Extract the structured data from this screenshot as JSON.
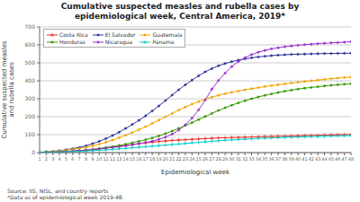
{
  "chart_data": {
    "type": "line",
    "title": "Cumulative suspected measles and rubella cases by\nepidemiological week, Central America, 2019*",
    "x_label": "Epidemiological week",
    "y_label": "Cumulative suspected measles\nand rubella cases",
    "annotations": [
      "Source: IIS, NISL, and country reports",
      "*Data as of epidemiological week 2019-48."
    ],
    "x": [
      1,
      2,
      3,
      4,
      5,
      6,
      7,
      8,
      9,
      10,
      11,
      12,
      13,
      14,
      15,
      16,
      17,
      18,
      19,
      20,
      21,
      22,
      23,
      24,
      25,
      26,
      27,
      28,
      29,
      30,
      31,
      32,
      33,
      34,
      35,
      36,
      37,
      38,
      39,
      40,
      41,
      42,
      43,
      44,
      45,
      46,
      47,
      48
    ],
    "xlim": [
      1,
      48
    ],
    "xticks": [
      1,
      2,
      3,
      4,
      5,
      6,
      7,
      8,
      9,
      10,
      11,
      12,
      13,
      14,
      15,
      16,
      17,
      18,
      19,
      20,
      21,
      22,
      23,
      24,
      25,
      26,
      27,
      28,
      29,
      30,
      31,
      32,
      33,
      34,
      35,
      36,
      37,
      38,
      39,
      40,
      41,
      42,
      43,
      44,
      45,
      46,
      47,
      48
    ],
    "ylim": [
      0,
      700
    ],
    "yticks": [
      0,
      100,
      200,
      300,
      400,
      500,
      600,
      700
    ],
    "grid": "y",
    "legend": "upper left",
    "series": [
      {
        "name": "Costa Rica",
        "color": "#e8251a",
        "marker": "plus",
        "values": [
          2,
          3,
          4,
          5,
          7,
          9,
          11,
          14,
          17,
          21,
          25,
          30,
          35,
          40,
          45,
          50,
          55,
          58,
          62,
          65,
          68,
          70,
          72,
          74,
          76,
          78,
          80,
          82,
          83,
          84,
          85,
          86,
          87,
          88,
          89,
          90,
          91,
          92,
          93,
          94,
          95,
          96,
          97,
          98,
          99,
          100,
          100,
          101
        ]
      },
      {
        "name": "El Salvador",
        "color": "#333399",
        "marker": "circle",
        "values": [
          2,
          4,
          7,
          11,
          16,
          22,
          29,
          38,
          50,
          63,
          78,
          95,
          114,
          135,
          157,
          180,
          205,
          232,
          260,
          290,
          320,
          350,
          378,
          404,
          428,
          450,
          468,
          484,
          496,
          507,
          515,
          522,
          528,
          533,
          537,
          540,
          543,
          545,
          547,
          548,
          549,
          550,
          551,
          552,
          552,
          553,
          553,
          554
        ]
      },
      {
        "name": "Guatemala",
        "color": "#f0a500",
        "marker": "circle",
        "values": [
          2,
          4,
          7,
          10,
          14,
          18,
          24,
          30,
          38,
          47,
          58,
          70,
          83,
          97,
          112,
          128,
          145,
          163,
          181,
          200,
          218,
          237,
          254,
          270,
          284,
          297,
          309,
          319,
          328,
          336,
          343,
          350,
          356,
          362,
          368,
          373,
          378,
          383,
          388,
          392,
          396,
          400,
          404,
          408,
          412,
          415,
          418,
          421
        ]
      },
      {
        "name": "Honduras",
        "color": "#339900",
        "marker": "circle",
        "values": [
          1,
          2,
          3,
          4,
          6,
          8,
          11,
          14,
          18,
          23,
          28,
          34,
          40,
          47,
          55,
          63,
          72,
          82,
          93,
          106,
          120,
          135,
          151,
          167,
          184,
          201,
          218,
          235,
          250,
          264,
          277,
          289,
          300,
          310,
          319,
          327,
          335,
          342,
          348,
          354,
          359,
          363,
          367,
          371,
          375,
          378,
          381,
          384
        ]
      },
      {
        "name": "Nicaragua",
        "color": "#9933cc",
        "marker": "circle",
        "values": [
          1,
          2,
          3,
          4,
          6,
          8,
          11,
          14,
          17,
          21,
          25,
          29,
          33,
          38,
          44,
          50,
          56,
          64,
          74,
          86,
          103,
          125,
          155,
          192,
          238,
          293,
          354,
          402,
          443,
          479,
          507,
          529,
          546,
          559,
          569,
          578,
          584,
          590,
          594,
          598,
          601,
          604,
          607,
          609,
          611,
          613,
          615,
          618
        ]
      },
      {
        "name": "Panama",
        "color": "#00cccc",
        "marker": "plus",
        "values": [
          1,
          2,
          3,
          4,
          5,
          6,
          7,
          9,
          11,
          13,
          15,
          18,
          21,
          24,
          27,
          30,
          33,
          36,
          39,
          42,
          45,
          48,
          51,
          54,
          57,
          60,
          63,
          66,
          69,
          71,
          73,
          75,
          77,
          79,
          81,
          82,
          83,
          85,
          86,
          87,
          88,
          89,
          90,
          91,
          92,
          93,
          94,
          95
        ]
      }
    ]
  }
}
